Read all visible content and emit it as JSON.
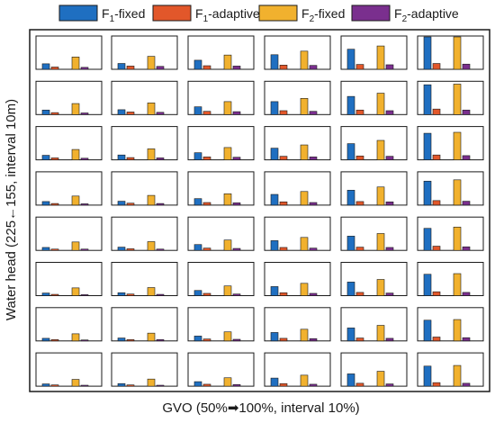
{
  "chart_data": {
    "type": "bar",
    "legend_position": "top",
    "legend": [
      {
        "key": "f1_fixed",
        "base": "F",
        "sub": "1",
        "rest": "-fixed",
        "color": "#1f6fc1"
      },
      {
        "key": "f1_adaptive",
        "base": "F",
        "sub": "1",
        "rest": "-adaptive",
        "color": "#e2572a"
      },
      {
        "key": "f2_fixed",
        "base": "F",
        "sub": "2",
        "rest": "-fixed",
        "color": "#f1b12e"
      },
      {
        "key": "f2_adaptive",
        "base": "F",
        "sub": "2",
        "rest": "-adaptive",
        "color": "#7a2f8e"
      }
    ],
    "xlabel": "GVO (50%➡100%, interval 10%)",
    "ylabel": "Water head (225←155, interval 10m)",
    "grid": false,
    "rows": 8,
    "cols": 6,
    "ylim": [
      0,
      1
    ],
    "panels": [
      [
        [
          0.17,
          0.07,
          0.38,
          0.06
        ],
        [
          0.18,
          0.1,
          0.4,
          0.09
        ],
        [
          0.28,
          0.11,
          0.44,
          0.1
        ],
        [
          0.45,
          0.13,
          0.56,
          0.12
        ],
        [
          0.62,
          0.15,
          0.72,
          0.14
        ],
        [
          1.0,
          0.18,
          1.0,
          0.16
        ]
      ],
      [
        [
          0.14,
          0.06,
          0.34,
          0.05
        ],
        [
          0.15,
          0.08,
          0.36,
          0.07
        ],
        [
          0.24,
          0.1,
          0.4,
          0.09
        ],
        [
          0.4,
          0.12,
          0.5,
          0.1
        ],
        [
          0.56,
          0.14,
          0.66,
          0.12
        ],
        [
          0.92,
          0.17,
          0.94,
          0.14
        ]
      ],
      [
        [
          0.14,
          0.06,
          0.32,
          0.05
        ],
        [
          0.15,
          0.07,
          0.34,
          0.06
        ],
        [
          0.22,
          0.09,
          0.38,
          0.08
        ],
        [
          0.36,
          0.11,
          0.46,
          0.09
        ],
        [
          0.5,
          0.12,
          0.6,
          0.11
        ],
        [
          0.82,
          0.15,
          0.85,
          0.13
        ]
      ],
      [
        [
          0.11,
          0.05,
          0.28,
          0.04
        ],
        [
          0.12,
          0.06,
          0.3,
          0.05
        ],
        [
          0.2,
          0.08,
          0.35,
          0.07
        ],
        [
          0.33,
          0.1,
          0.42,
          0.08
        ],
        [
          0.46,
          0.11,
          0.56,
          0.1
        ],
        [
          0.74,
          0.14,
          0.78,
          0.12
        ]
      ],
      [
        [
          0.09,
          0.04,
          0.26,
          0.04
        ],
        [
          0.1,
          0.05,
          0.27,
          0.04
        ],
        [
          0.18,
          0.07,
          0.32,
          0.06
        ],
        [
          0.3,
          0.09,
          0.4,
          0.07
        ],
        [
          0.44,
          0.1,
          0.52,
          0.09
        ],
        [
          0.68,
          0.13,
          0.72,
          0.11
        ]
      ],
      [
        [
          0.08,
          0.04,
          0.24,
          0.03
        ],
        [
          0.09,
          0.05,
          0.25,
          0.04
        ],
        [
          0.16,
          0.07,
          0.3,
          0.05
        ],
        [
          0.28,
          0.09,
          0.38,
          0.07
        ],
        [
          0.42,
          0.1,
          0.5,
          0.08
        ],
        [
          0.66,
          0.12,
          0.68,
          0.1
        ]
      ],
      [
        [
          0.08,
          0.04,
          0.22,
          0.03
        ],
        [
          0.09,
          0.04,
          0.24,
          0.04
        ],
        [
          0.15,
          0.06,
          0.28,
          0.05
        ],
        [
          0.26,
          0.08,
          0.36,
          0.07
        ],
        [
          0.4,
          0.09,
          0.48,
          0.08
        ],
        [
          0.64,
          0.12,
          0.66,
          0.1
        ]
      ],
      [
        [
          0.07,
          0.04,
          0.21,
          0.03
        ],
        [
          0.08,
          0.04,
          0.22,
          0.03
        ],
        [
          0.14,
          0.06,
          0.26,
          0.05
        ],
        [
          0.25,
          0.08,
          0.34,
          0.06
        ],
        [
          0.38,
          0.09,
          0.46,
          0.07
        ],
        [
          0.62,
          0.11,
          0.64,
          0.09
        ]
      ]
    ]
  }
}
